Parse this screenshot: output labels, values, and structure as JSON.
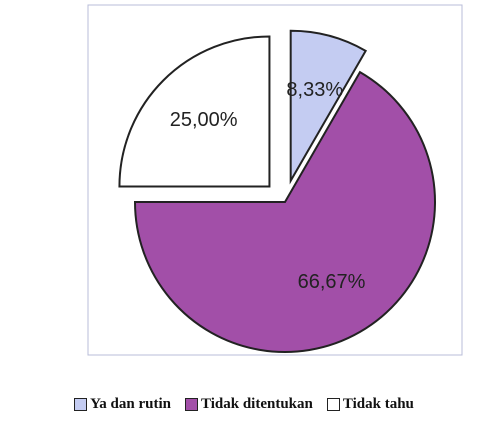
{
  "chart_data": {
    "type": "pie",
    "categories": [
      "Ya dan rutin",
      "Tidak ditentukan",
      "Tidak tahu"
    ],
    "values": [
      8.33,
      66.67,
      25
    ],
    "value_labels": [
      "8,33%",
      "66,67%",
      "25,00%"
    ],
    "colors": [
      "#c4ccf2",
      "#a24fa8",
      "#ffffff"
    ],
    "exploded": [
      true,
      false,
      true
    ]
  }
}
